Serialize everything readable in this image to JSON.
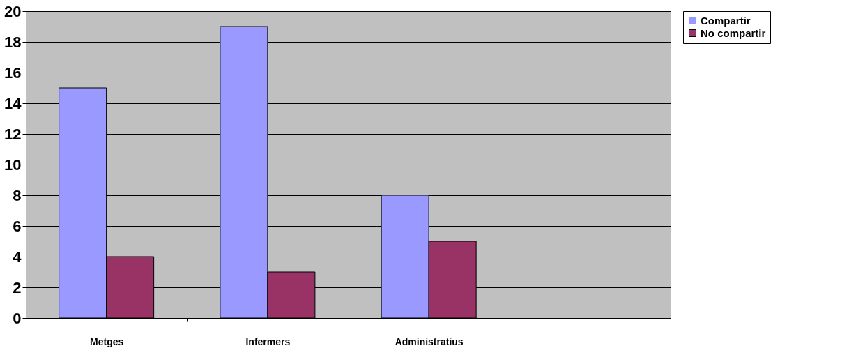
{
  "chart_data": {
    "type": "bar",
    "categories": [
      "Metges",
      "Infermers",
      "Administratius",
      null
    ],
    "series": [
      {
        "name": "Compartir",
        "color": "#9999ff",
        "values": [
          15,
          19,
          8,
          null
        ]
      },
      {
        "name": "No compartir",
        "color": "#993366",
        "values": [
          4,
          3,
          5,
          null
        ]
      }
    ],
    "ylim": [
      0,
      20
    ],
    "yticks": [
      0,
      2,
      4,
      6,
      8,
      10,
      12,
      14,
      16,
      18,
      20
    ],
    "grid": "y",
    "legend": "right"
  }
}
